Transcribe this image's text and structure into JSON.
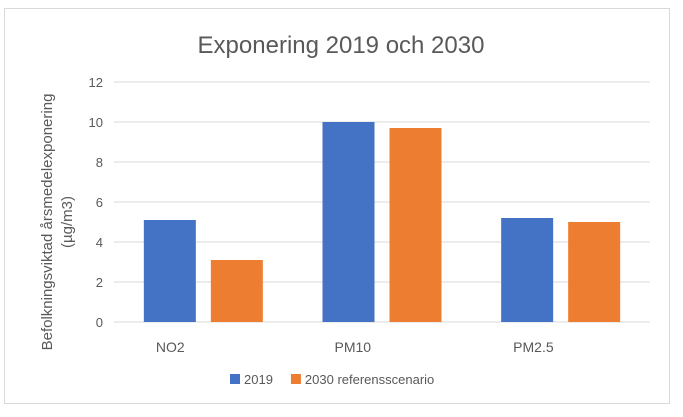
{
  "chart_data": {
    "type": "bar",
    "title": "Exponering 2019 och 2030",
    "ylabel_line1": "Befolkningsviktad årsmedelexponering",
    "ylabel_line2": "(µg/m3)",
    "xlabel": "",
    "categories": [
      "NO2",
      "PM10",
      "PM2.5"
    ],
    "series": [
      {
        "name": "2019",
        "color": "#4472c4",
        "values": [
          5.1,
          10.0,
          5.2
        ]
      },
      {
        "name": "2030 referensscenario",
        "color": "#ed7d31",
        "values": [
          3.1,
          9.7,
          5.0
        ]
      }
    ],
    "ylim": [
      0,
      12
    ],
    "yticks": [
      "0",
      "2",
      "4",
      "6",
      "8",
      "10",
      "12"
    ],
    "grid": true,
    "legend_position": "bottom"
  }
}
